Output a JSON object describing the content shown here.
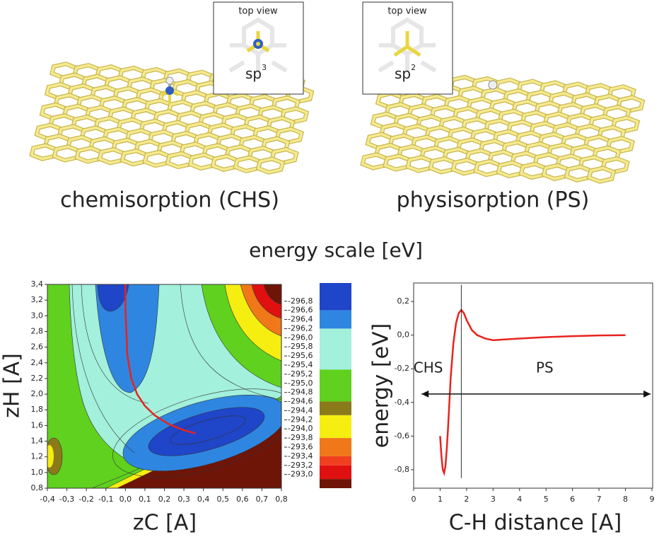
{
  "top_panel": {
    "left": {
      "inset_title": "top view",
      "hybrid": {
        "base": "sp",
        "sup": "3"
      },
      "caption": "chemisorption (CHS)"
    },
    "right": {
      "inset_title": "top view",
      "hybrid": {
        "base": "sp",
        "sup": "2"
      },
      "caption": "physisorption (PS)"
    }
  },
  "chart_data": [
    {
      "type": "contour",
      "x_label": "zC [A]",
      "y_label": "zH [A]",
      "xlim": [
        -0.4,
        0.8
      ],
      "ylim": [
        0.8,
        3.4
      ],
      "xticks": [
        {
          "value": -0.4,
          "label": "-0,4"
        },
        {
          "value": -0.3,
          "label": "-0,3"
        },
        {
          "value": -0.2,
          "label": "-0,2"
        },
        {
          "value": -0.1,
          "label": "-0,1"
        },
        {
          "value": 0,
          "label": "0,0"
        },
        {
          "value": 0.1,
          "label": "0,1"
        },
        {
          "value": 0.2,
          "label": "0,2"
        },
        {
          "value": 0.3,
          "label": "0,3"
        },
        {
          "value": 0.4,
          "label": "0,4"
        },
        {
          "value": 0.5,
          "label": "0,5"
        },
        {
          "value": 0.6,
          "label": "0,6"
        },
        {
          "value": 0.7,
          "label": "0,7"
        },
        {
          "value": 0.8,
          "label": "0,8"
        }
      ],
      "yticks": [
        {
          "value": 0.8,
          "label": "0,8"
        },
        {
          "value": 1.0,
          "label": "1,0"
        },
        {
          "value": 1.2,
          "label": "1,2"
        },
        {
          "value": 1.4,
          "label": "1,4"
        },
        {
          "value": 1.6,
          "label": "1,6"
        },
        {
          "value": 1.8,
          "label": "1,8"
        },
        {
          "value": 2.0,
          "label": "2,0"
        },
        {
          "value": 2.2,
          "label": "2,2"
        },
        {
          "value": 2.4,
          "label": "2,4"
        },
        {
          "value": 2.6,
          "label": "2,6"
        },
        {
          "value": 2.8,
          "label": "2,8"
        },
        {
          "value": 3.0,
          "label": "3,0"
        },
        {
          "value": 3.2,
          "label": "3,2"
        },
        {
          "value": 3.4,
          "label": "3,4"
        }
      ],
      "series": [
        {
          "color": "#e8231e",
          "x": [
            0.0,
            0.0,
            0.005,
            0.01,
            0.03,
            0.06,
            0.1,
            0.15,
            0.22,
            0.3,
            0.36
          ],
          "values": [
            3.4,
            3.1,
            2.8,
            2.5,
            2.2,
            2.0,
            1.85,
            1.73,
            1.62,
            1.54,
            1.5
          ]
        }
      ],
      "colorbar": {
        "title": "energy scale [eV]",
        "lim": [
          -297.2,
          -292.7
        ],
        "ticks": [
          {
            "value": -296.8,
            "label": "-296,8"
          },
          {
            "value": -296.6,
            "label": "-296,6"
          },
          {
            "value": -296.4,
            "label": "-296,4"
          },
          {
            "value": -296.2,
            "label": "-296,2"
          },
          {
            "value": -296.0,
            "label": "-296,0"
          },
          {
            "value": -295.8,
            "label": "-295,8"
          },
          {
            "value": -295.6,
            "label": "-295,6"
          },
          {
            "value": -295.4,
            "label": "-295,4"
          },
          {
            "value": -295.2,
            "label": "-295,2"
          },
          {
            "value": -295.0,
            "label": "-295,0"
          },
          {
            "value": -294.8,
            "label": "-294,8"
          },
          {
            "value": -294.6,
            "label": "-294,6"
          },
          {
            "value": -294.4,
            "label": "-294,4"
          },
          {
            "value": -294.2,
            "label": "-294,2"
          },
          {
            "value": -294.0,
            "label": "-294,0"
          },
          {
            "value": -293.8,
            "label": "-293,8"
          },
          {
            "value": -293.6,
            "label": "-293,6"
          },
          {
            "value": -293.4,
            "label": "-293,4"
          },
          {
            "value": -293.2,
            "label": "-293,2"
          },
          {
            "value": -293.0,
            "label": "-293,0"
          }
        ],
        "levels": [
          -297.2,
          -296.6,
          -296.2,
          -295.3,
          -294.6,
          -294.3,
          -293.8,
          -293.4,
          -293.2,
          -292.9,
          -292.7
        ],
        "colors": [
          "#1f45c8",
          "#2f86e0",
          "#a3f0dc",
          "#5fd11e",
          "#8b7a1a",
          "#f5ee10",
          "#f07818",
          "#f04020",
          "#e01010",
          "#6e1508"
        ]
      }
    },
    {
      "type": "line",
      "x_label": "C-H distance [A]",
      "y_label": "energy [eV]",
      "xlim": [
        0,
        9
      ],
      "ylim": [
        -0.91,
        0.31
      ],
      "xticks": [
        0,
        1,
        2,
        3,
        4,
        5,
        6,
        7,
        8,
        9
      ],
      "yticks": [
        {
          "value": 0.2,
          "label": "0,2"
        },
        {
          "value": 0,
          "label": "0,0"
        },
        {
          "value": -0.2,
          "label": "-0,2"
        },
        {
          "value": -0.4,
          "label": "-0,4"
        },
        {
          "value": -0.6,
          "label": "-0,6"
        },
        {
          "value": -0.8,
          "label": "-0,8"
        }
      ],
      "color": "#e8231e",
      "x": [
        1.0,
        1.05,
        1.1,
        1.15,
        1.2,
        1.25,
        1.3,
        1.35,
        1.4,
        1.5,
        1.6,
        1.7,
        1.8,
        1.9,
        2.0,
        2.2,
        2.4,
        2.7,
        3.0,
        3.5,
        4.0,
        5.0,
        6.0,
        7.0,
        8.0
      ],
      "values": [
        -0.6,
        -0.72,
        -0.8,
        -0.82,
        -0.78,
        -0.68,
        -0.55,
        -0.4,
        -0.25,
        -0.05,
        0.07,
        0.13,
        0.15,
        0.13,
        0.09,
        0.03,
        0.0,
        -0.02,
        -0.03,
        -0.025,
        -0.02,
        -0.012,
        -0.006,
        -0.002,
        0.0
      ],
      "annotations": [
        {
          "text": "CHS",
          "x": 0.55,
          "y": -0.2
        },
        {
          "text": "PS",
          "x": 4.95,
          "y": -0.2
        }
      ],
      "vline": {
        "x": 1.8,
        "y": [
          -0.85,
          0.3
        ]
      },
      "arrow": {
        "x": [
          0.3,
          8.95
        ],
        "y": -0.35
      }
    }
  ]
}
